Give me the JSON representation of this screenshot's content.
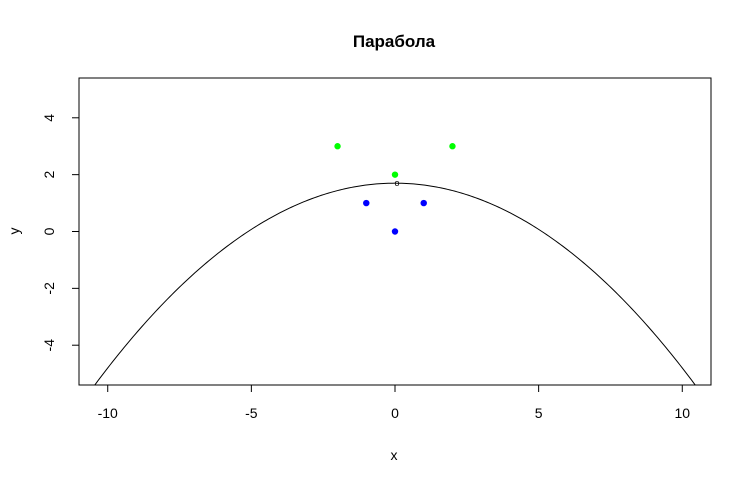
{
  "chart_data": {
    "type": "scatter",
    "title": "Парабола",
    "xlabel": "x",
    "ylabel": "y",
    "xlim": [
      -11,
      11
    ],
    "ylim": [
      -5.4,
      5.4
    ],
    "x_ticks": [
      -10,
      -5,
      0,
      5,
      10
    ],
    "y_ticks": [
      -4,
      -2,
      0,
      2,
      4
    ],
    "grid": false,
    "curve": {
      "name": "parabola",
      "formula": "y = 1.7 - 0.065 * x^2",
      "vertex": [
        0,
        1.7
      ],
      "a": -0.065,
      "color": "#000000"
    },
    "series": [
      {
        "name": "green",
        "color": "#00ff00",
        "points": [
          {
            "x": -2,
            "y": 3
          },
          {
            "x": 0,
            "y": 2
          },
          {
            "x": 2,
            "y": 3
          }
        ]
      },
      {
        "name": "blue",
        "color": "#0000ff",
        "points": [
          {
            "x": -1,
            "y": 1
          },
          {
            "x": 0,
            "y": 0
          },
          {
            "x": 1,
            "y": 1
          }
        ]
      }
    ],
    "annotations": [
      {
        "x": 0,
        "y": 1.7,
        "text": "o"
      }
    ]
  }
}
